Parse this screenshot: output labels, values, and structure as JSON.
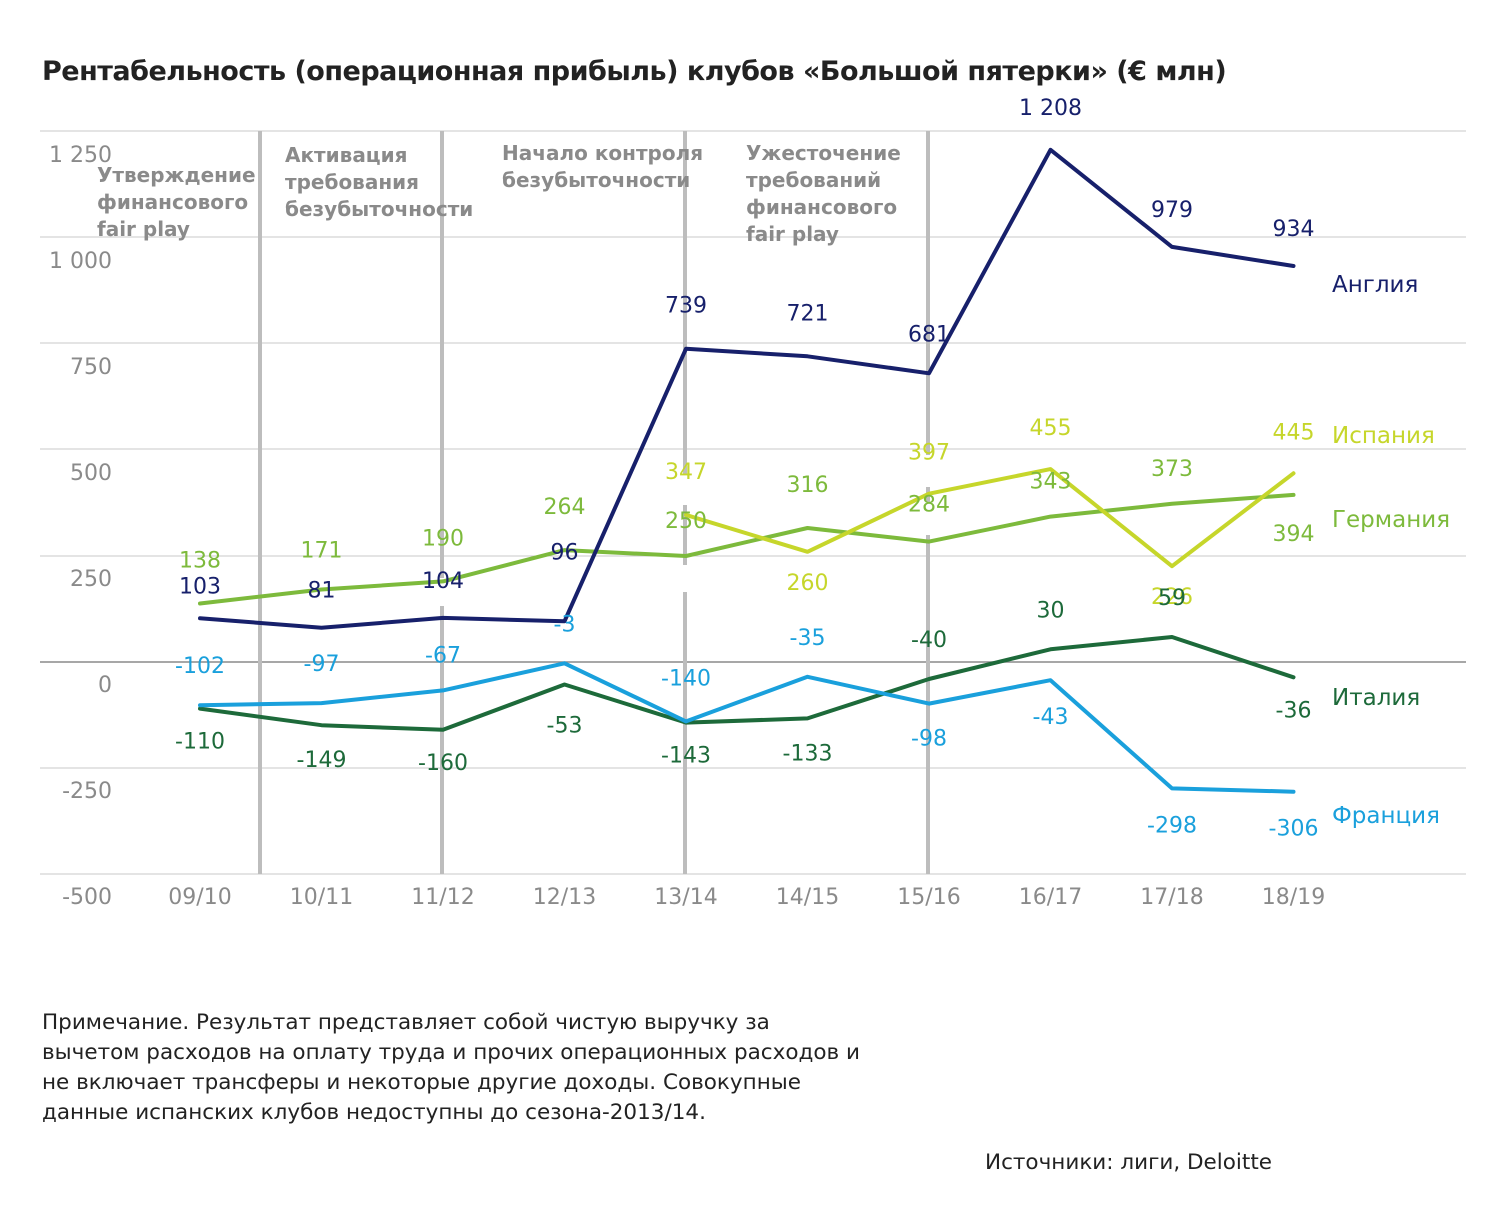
{
  "chart_data": {
    "type": "line",
    "title": "Рентабельность (операционная прибыль) клубов «Большой пятерки» (€ млн)",
    "categories": [
      "09/10",
      "10/11",
      "11/12",
      "12/13",
      "13/14",
      "14/15",
      "15/16",
      "16/17",
      "17/18",
      "18/19"
    ],
    "y_ticks": [
      "1 250",
      "1 000",
      "750",
      "500",
      "250",
      "0",
      "-250",
      "-500"
    ],
    "ylim": [
      -500,
      1250
    ],
    "grid": true,
    "legend": "series names at line ends (right)",
    "series": [
      {
        "name": "Англия",
        "color": "#17206b",
        "values": [
          103,
          81,
          104,
          96,
          739,
          721,
          681,
          1208,
          979,
          934
        ],
        "labels": [
          "103",
          "81",
          "104",
          "96",
          "739",
          "721",
          "681",
          "1 208",
          "979",
          "934"
        ]
      },
      {
        "name": "Испания",
        "color": "#c6d62b",
        "values": [
          null,
          null,
          null,
          null,
          347,
          260,
          397,
          455,
          226,
          445
        ],
        "labels": [
          null,
          null,
          null,
          null,
          "347",
          "260",
          "397",
          "455",
          "226",
          "445"
        ]
      },
      {
        "name": "Германия",
        "color": "#7dba3c",
        "values": [
          138,
          171,
          190,
          264,
          250,
          316,
          284,
          343,
          373,
          394
        ],
        "labels": [
          "138",
          "171",
          "190",
          "264",
          "250",
          "316",
          "284",
          "343",
          "373",
          "394"
        ]
      },
      {
        "name": "Италия",
        "color": "#1d6a3a",
        "values": [
          -110,
          -149,
          -160,
          -53,
          -143,
          -133,
          -40,
          30,
          59,
          -36
        ],
        "labels": [
          "-110",
          "-149",
          "-160",
          "-53",
          "-143",
          "-133",
          "-40",
          "30",
          "59",
          "-36"
        ]
      },
      {
        "name": "Франция",
        "color": "#1aa0dc",
        "values": [
          -102,
          -97,
          -67,
          -3,
          -140,
          -35,
          -98,
          -43,
          -298,
          -306
        ],
        "labels": [
          "-102",
          "-97",
          "-67",
          "-3",
          "-140",
          "-35",
          "-98",
          "-43",
          "-298",
          "-306"
        ]
      }
    ],
    "annotations": [
      {
        "text": [
          "Утверждение",
          "финансового",
          "fair play"
        ]
      },
      {
        "text": [
          "Активация",
          "требования",
          "безубыточности"
        ]
      },
      {
        "text": [
          "Начало контроля",
          "безубыточности"
        ]
      },
      {
        "text": [
          "Ужесточение",
          "требований",
          "финансового",
          "fair play"
        ]
      }
    ]
  },
  "note": "Примечание. Результат представляет собой чистую выручку за вычетом расходов на оплату труда и прочих операционных расходов и не включает трансферы и некоторые другие доходы. Совокупные данные испанских клубов недоступны до сезона-2013/14.",
  "source": "Источники: лиги, Deloitte"
}
